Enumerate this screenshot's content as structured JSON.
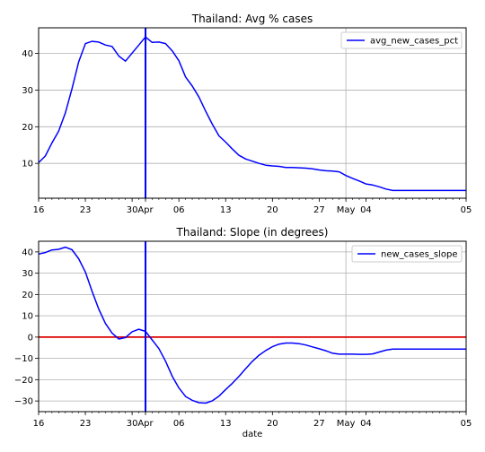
{
  "chart_data": [
    {
      "type": "line",
      "title": "Thailand: Avg % cases",
      "xlabel": "",
      "ylabel": "",
      "x_day_range": [
        16,
        80
      ],
      "ylim": [
        0.5,
        47
      ],
      "yticks": [
        10,
        20,
        30,
        40
      ],
      "grid": "y-major, plus vertical line at May",
      "legend": {
        "position": "top-right",
        "entries": [
          "avg_new_cases_pct"
        ]
      },
      "xtick_labels": [
        "16",
        "23",
        "30",
        "Apr",
        "06",
        "13",
        "20",
        "27",
        "May",
        "04",
        "05"
      ],
      "vline": {
        "label": "Apr",
        "color": "#0000ff"
      },
      "series": [
        {
          "name": "avg_new_cases_pct",
          "color": "#0000ff",
          "x": [
            16,
            17,
            18,
            19,
            20,
            21,
            22,
            23,
            24,
            25,
            26,
            27,
            28,
            29,
            30,
            31,
            32,
            33,
            34,
            35,
            36,
            37,
            38,
            39,
            40,
            41,
            42,
            43,
            44,
            45,
            46,
            47,
            48,
            49,
            50,
            51,
            52,
            53,
            54,
            55,
            56,
            57,
            58,
            59,
            60,
            61,
            62,
            63,
            64,
            65,
            66,
            67,
            68,
            69,
            70,
            71,
            72,
            73,
            74,
            75,
            76,
            77,
            78,
            79,
            80
          ],
          "values": [
            10.2,
            12.0,
            15.6,
            18.8,
            23.8,
            30.4,
            37.7,
            42.7,
            43.3,
            43.1,
            42.3,
            41.9,
            39.3,
            37.9,
            40.1,
            42.3,
            44.5,
            43.0,
            43.1,
            42.7,
            40.7,
            38.0,
            33.6,
            31.1,
            28.1,
            24.3,
            20.7,
            17.5,
            15.8,
            13.9,
            12.2,
            11.2,
            10.6,
            10.0,
            9.5,
            9.3,
            9.2,
            8.9,
            8.9,
            8.8,
            8.7,
            8.5,
            8.2,
            8.0,
            7.9,
            7.7,
            6.7,
            5.9,
            5.2,
            4.4,
            4.1,
            3.6,
            3.0,
            2.6,
            2.6,
            2.6,
            2.6,
            2.6,
            2.6,
            2.6,
            2.6,
            2.6,
            2.6,
            2.6,
            2.6
          ]
        }
      ]
    },
    {
      "type": "line",
      "title": "Thailand: Slope (in degrees)",
      "xlabel": "date",
      "ylabel": "",
      "x_day_range": [
        16,
        80
      ],
      "ylim": [
        -35,
        45
      ],
      "yticks": [
        -30,
        -20,
        -10,
        0,
        10,
        20,
        30,
        40
      ],
      "ytick_labels": [
        "−30",
        "−20",
        "−10",
        "0",
        "10",
        "20",
        "30",
        "40"
      ],
      "grid": "y-major, plus vertical line at May",
      "legend": {
        "position": "top-right",
        "entries": [
          "new_cases_slope"
        ]
      },
      "xtick_labels": [
        "16",
        "23",
        "30",
        "Apr",
        "06",
        "13",
        "20",
        "27",
        "May",
        "04",
        "05"
      ],
      "vline": {
        "label": "Apr",
        "color": "#0000ff"
      },
      "hline": {
        "y": 0,
        "color": "#dd0000"
      },
      "series": [
        {
          "name": "new_cases_slope",
          "color": "#0000ff",
          "x": [
            16,
            17,
            18,
            19,
            20,
            21,
            22,
            23,
            24,
            25,
            26,
            27,
            28,
            29,
            30,
            31,
            32,
            33,
            34,
            35,
            36,
            37,
            38,
            39,
            40,
            41,
            42,
            43,
            44,
            45,
            46,
            47,
            48,
            49,
            50,
            51,
            52,
            53,
            54,
            55,
            56,
            57,
            58,
            59,
            60,
            61,
            62,
            63,
            64,
            65,
            66,
            67,
            68,
            69,
            70,
            71,
            72,
            73,
            74,
            75,
            76,
            77,
            78,
            79,
            80
          ],
          "values": [
            39.0,
            39.7,
            40.9,
            41.2,
            42.2,
            41.0,
            36.8,
            30.5,
            21.5,
            13.2,
            6.4,
            1.9,
            -0.9,
            -0.2,
            2.5,
            3.7,
            2.7,
            -1.3,
            -5.4,
            -11.3,
            -18.4,
            -23.9,
            -27.9,
            -29.7,
            -30.8,
            -31.0,
            -29.9,
            -27.7,
            -24.6,
            -21.7,
            -18.4,
            -14.8,
            -11.4,
            -8.5,
            -6.3,
            -4.5,
            -3.3,
            -2.8,
            -2.8,
            -3.1,
            -3.7,
            -4.6,
            -5.5,
            -6.4,
            -7.6,
            -8.0,
            -8.0,
            -8.0,
            -8.1,
            -8.1,
            -7.9,
            -7.0,
            -6.1,
            -5.6,
            -5.6,
            -5.6,
            -5.6,
            -5.6,
            -5.6,
            -5.6,
            -5.6,
            -5.6,
            -5.6,
            -5.6,
            -5.6
          ]
        }
      ]
    }
  ]
}
